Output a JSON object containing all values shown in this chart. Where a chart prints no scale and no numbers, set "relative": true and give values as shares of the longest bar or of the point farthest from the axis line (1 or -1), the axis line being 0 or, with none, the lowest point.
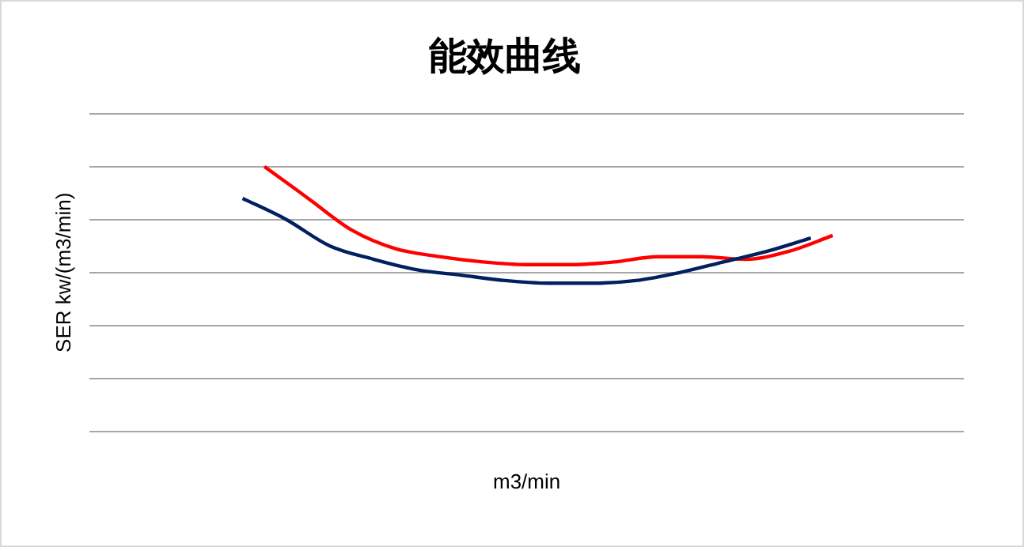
{
  "chart_data": {
    "type": "line",
    "title": "能效曲线",
    "xlabel": "m3/min",
    "ylabel": "SER kw/(m3/min)",
    "relative": true,
    "grid": "y",
    "legend": false,
    "marker": "none",
    "line_style": "solid",
    "categories": [
      null,
      null,
      null,
      null,
      null,
      null,
      null,
      null,
      null,
      null,
      null,
      null,
      null,
      null,
      null,
      null,
      null,
      null,
      null,
      null,
      null,
      null,
      null,
      null,
      null,
      null,
      null,
      null,
      null,
      null,
      null,
      null,
      null,
      null,
      null,
      null,
      null,
      null,
      null,
      null,
      null
    ],
    "series": [
      {
        "color": "#002060",
        "values": [
          null,
          null,
          null,
          null,
          null,
          null,
          null,
          0.88,
          null,
          0.8,
          null,
          0.7,
          null,
          0.65,
          null,
          0.61,
          null,
          0.59,
          null,
          0.57,
          null,
          0.56,
          null,
          0.56,
          null,
          0.57,
          null,
          0.6,
          null,
          0.64,
          null,
          0.68,
          null,
          0.73,
          null,
          null,
          null,
          null,
          null,
          null,
          null
        ]
      },
      {
        "color": "#ff0000",
        "values": [
          null,
          null,
          null,
          null,
          null,
          null,
          null,
          null,
          1,
          null,
          0.88,
          null,
          0.76,
          null,
          0.69,
          null,
          0.66,
          null,
          0.64,
          null,
          0.63,
          null,
          0.63,
          null,
          0.64,
          null,
          0.66,
          null,
          0.66,
          null,
          0.65,
          null,
          0.68,
          null,
          0.74,
          null,
          null,
          null,
          null,
          null,
          null
        ]
      }
    ]
  }
}
